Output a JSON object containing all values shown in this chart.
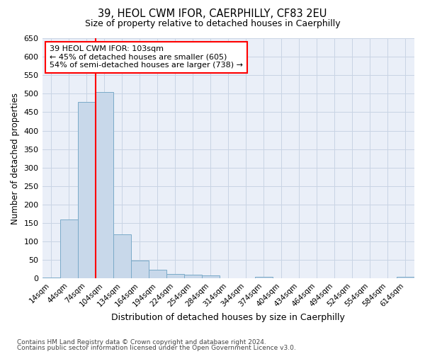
{
  "title_line1": "39, HEOL CWM IFOR, CAERPHILLY, CF83 2EU",
  "title_line2": "Size of property relative to detached houses in Caerphilly",
  "xlabel": "Distribution of detached houses by size in Caerphilly",
  "ylabel": "Number of detached properties",
  "bar_color": "#c8d8ea",
  "bar_edge_color": "#7aaac8",
  "categories": [
    "14sqm",
    "44sqm",
    "74sqm",
    "104sqm",
    "134sqm",
    "164sqm",
    "194sqm",
    "224sqm",
    "254sqm",
    "284sqm",
    "314sqm",
    "344sqm",
    "374sqm",
    "404sqm",
    "434sqm",
    "464sqm",
    "494sqm",
    "524sqm",
    "554sqm",
    "584sqm",
    "614sqm"
  ],
  "values": [
    3,
    160,
    478,
    505,
    120,
    49,
    23,
    12,
    11,
    8,
    0,
    0,
    5,
    0,
    0,
    0,
    0,
    0,
    0,
    0,
    5
  ],
  "ylim": [
    0,
    650
  ],
  "yticks": [
    0,
    50,
    100,
    150,
    200,
    250,
    300,
    350,
    400,
    450,
    500,
    550,
    600,
    650
  ],
  "property_label": "39 HEOL CWM IFOR: 103sqm",
  "pct_smaller": 45,
  "n_smaller": 605,
  "pct_larger_semi": 54,
  "n_larger_semi": 738,
  "vline_bin_index": 3,
  "grid_color": "#c8d4e4",
  "background_color": "#eaeff8",
  "footer_line1": "Contains HM Land Registry data © Crown copyright and database right 2024.",
  "footer_line2": "Contains public sector information licensed under the Open Government Licence v3.0."
}
